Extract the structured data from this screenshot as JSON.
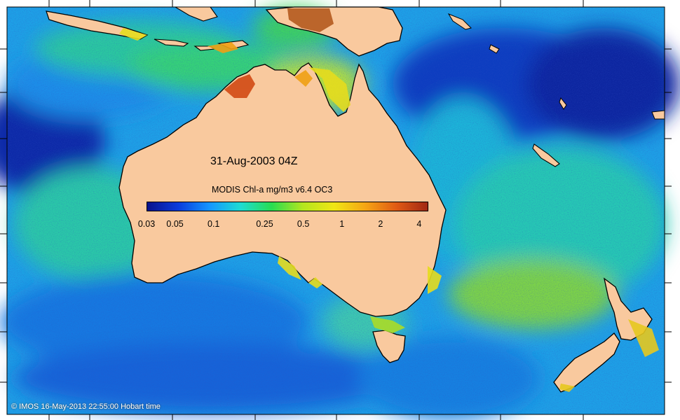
{
  "map": {
    "title": "31-Aug-2003 04Z",
    "colorbar": {
      "label": "MODIS Chl-a mg/m3 v6.4 OC3",
      "ticks": [
        "0.03",
        "0.05",
        "0.1",
        "0.25",
        "0.5",
        "1",
        "2",
        "4"
      ],
      "colors": [
        "#08128c",
        "#0a3cdc",
        "#1496ff",
        "#1edcd2",
        "#28dc50",
        "#b4e61e",
        "#f0e614",
        "#f5a514",
        "#e05a14",
        "#a02814"
      ],
      "scale": "log"
    },
    "credit": "© IMOS 16-May-2013 22:55:00 Hobart time",
    "land_color": "#f9c99e",
    "ocean_low_color": "#1040c8",
    "ocean_mid_color": "#1eb4e0",
    "ocean_high_color": "#3cd246"
  }
}
